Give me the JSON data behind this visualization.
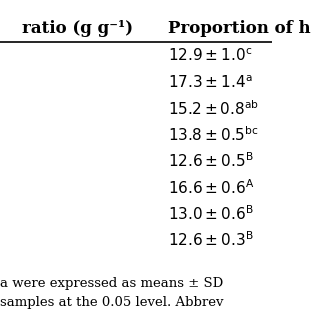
{
  "col1_header": "ratio (g g⁻¹)",
  "col2_header": "Proportion of h",
  "footer_lines": [
    "a were expressed as means ± SD",
    "samples at the 0.05 level. Abbrev"
  ],
  "background_color": "#ffffff",
  "text_color": "#000000",
  "font_size": 11,
  "header_font_size": 12
}
